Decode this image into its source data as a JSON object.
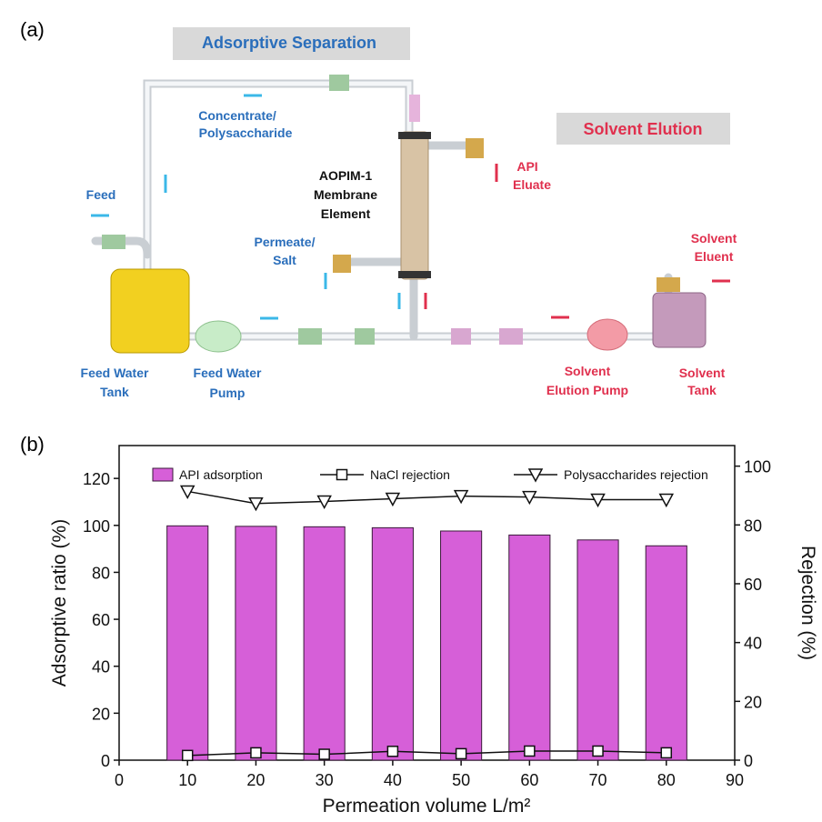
{
  "panel_labels": [
    "(a)",
    "(b)"
  ],
  "diagram": {
    "banners": [
      "Adsorptive Separation",
      "Solvent Elution"
    ],
    "labels": [
      {
        "lines": [
          "Feed"
        ]
      },
      {
        "lines": [
          "Concentrate/",
          "Polysaccharide"
        ]
      },
      {
        "lines": [
          "AOPIM-1",
          "Membrane",
          "Element"
        ]
      },
      {
        "lines": [
          "API",
          "Eluate"
        ]
      },
      {
        "lines": [
          "Permeate/",
          "Salt"
        ]
      },
      {
        "lines": [
          "Solvent",
          "Eluent"
        ]
      },
      {
        "lines": [
          "Feed Water",
          "Tank"
        ]
      },
      {
        "lines": [
          "Feed Water",
          "Pump"
        ]
      },
      {
        "lines": [
          "Solvent",
          "Elution Pump"
        ]
      },
      {
        "lines": [
          "Solvent",
          "Tank"
        ]
      }
    ]
  },
  "chart_data": {
    "type": "bar",
    "x_label": "Permeation volume L/m²",
    "y_label": "Adsorptive ratio (%)",
    "y2_label": "Rejection (%)",
    "x": [
      10,
      20,
      30,
      40,
      50,
      60,
      70,
      80
    ],
    "xlim": [
      0,
      90
    ],
    "xticks": [
      0,
      10,
      20,
      30,
      40,
      50,
      60,
      70,
      80,
      90
    ],
    "ylim": [
      0,
      134
    ],
    "yticks": [
      0,
      20,
      40,
      60,
      80,
      100,
      120
    ],
    "y2lim": [
      0,
      107
    ],
    "y2ticks": [
      0,
      20,
      40,
      60,
      80,
      100
    ],
    "series": [
      {
        "name": "API adsorption",
        "type": "bar",
        "color": "#d65fd8",
        "values": [
          99.8,
          99.6,
          99.4,
          99.0,
          97.6,
          95.9,
          93.8,
          91.3
        ]
      },
      {
        "name": "NaCl rejection",
        "type": "line",
        "marker": "square",
        "color": "#111111",
        "axis": "y2",
        "values": [
          1.6,
          2.5,
          2.0,
          3.0,
          2.2,
          3.1,
          3.1,
          2.5
        ]
      },
      {
        "name": "Polysaccharides rejection",
        "type": "line",
        "marker": "triangle-down",
        "color": "#111111",
        "axis": "y2",
        "values": [
          91.4,
          87.3,
          88.0,
          88.9,
          89.8,
          89.5,
          88.6,
          88.6
        ]
      }
    ]
  }
}
